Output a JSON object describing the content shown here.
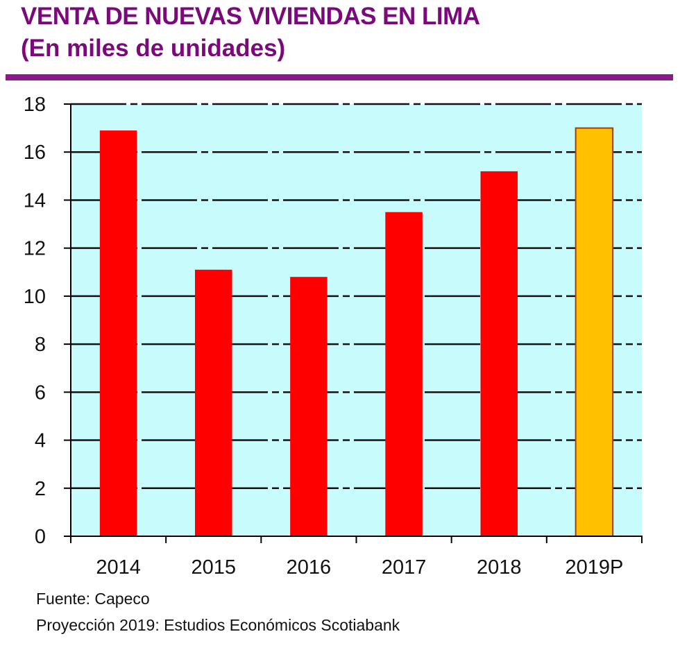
{
  "header": {
    "title": "VENTA DE NUEVAS VIVIENDAS EN LIMA",
    "subtitle": "(En miles de unidades)"
  },
  "footer": {
    "source": "Fuente: Capeco",
    "projection": "Proyección 2019: Estudios Económicos Scotiabank"
  },
  "colors": {
    "title": "#7a0a7a",
    "rule": "#8a1a8a",
    "plot_bg": "#c8fbfb",
    "bar": "#ff0000",
    "bar_projection": "#ffc000",
    "bar_projection_border": "#a0400a"
  },
  "chart_data": {
    "type": "bar",
    "title": "VENTA DE NUEVAS VIVIENDAS EN LIMA",
    "subtitle": "(En miles de unidades)",
    "xlabel": "",
    "ylabel": "",
    "categories": [
      "2014",
      "2015",
      "2016",
      "2017",
      "2018",
      "2019P"
    ],
    "values": [
      16.9,
      11.1,
      10.8,
      13.5,
      15.2,
      17.0
    ],
    "projected": [
      false,
      false,
      false,
      false,
      false,
      true
    ],
    "ylim": [
      0,
      18
    ],
    "yticks": [
      0,
      2,
      4,
      6,
      8,
      10,
      12,
      14,
      16,
      18
    ],
    "grid": true,
    "legend": "none"
  }
}
